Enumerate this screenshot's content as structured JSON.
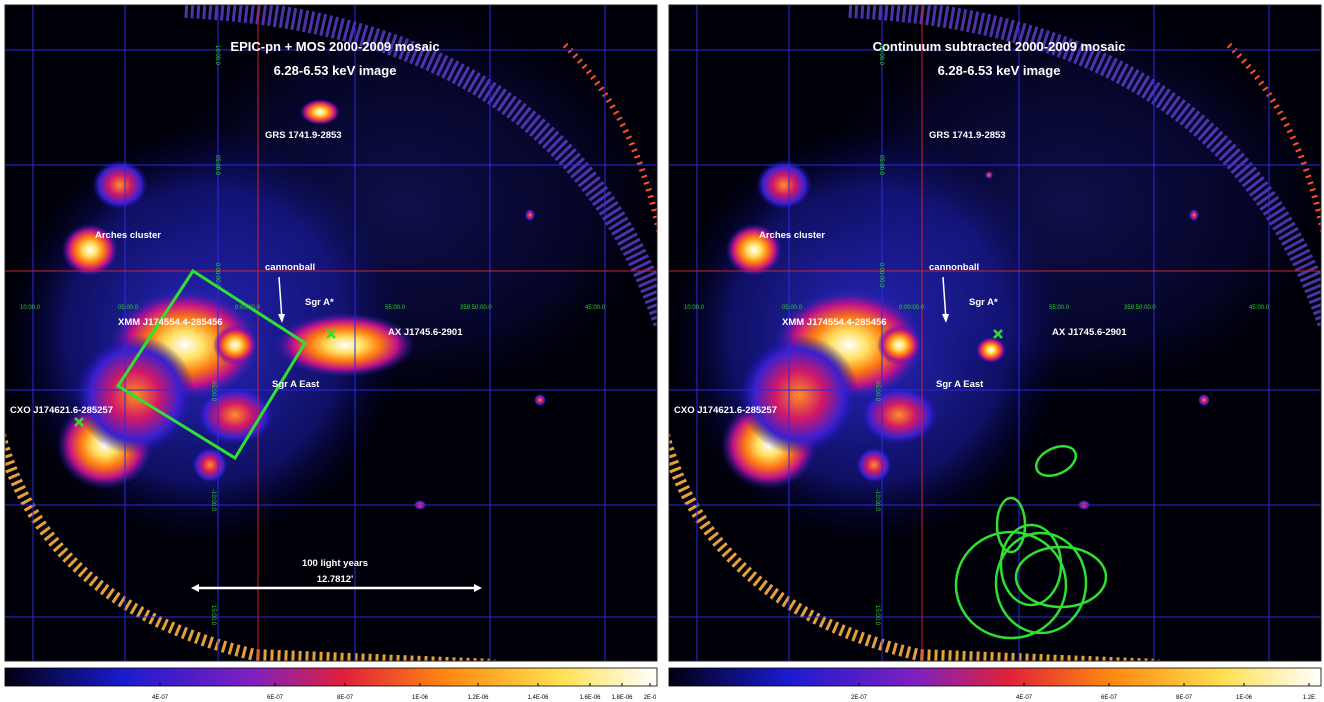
{
  "panels": [
    {
      "title": "EPIC-pn + MOS   2000-2009 mosaic",
      "subtitle": "6.28-6.53 keV image",
      "labels": [
        "GRS 1741.9-2853",
        "Arches cluster",
        "cannonball",
        "Sgr A*",
        "XMM J174554.4-285456",
        "AX J1745.6-2901",
        "Sgr A East",
        "CXO J174621.6-285257"
      ],
      "ra_labels": [
        "10:00.0",
        "05:00.0",
        "0:00:00.0",
        "55:00.0",
        "359:50:00.0",
        "45:00.0"
      ],
      "dec_labels": [
        "10:00.0",
        "05:00.0",
        "0:00:00.0",
        "-05:00.0",
        "-10:00.0",
        "15:00.0"
      ],
      "scale_bar": {
        "label": "100 light years",
        "value": "12.7812'"
      },
      "colorbar_ticks": [
        "4E-07",
        "6E-07",
        "8E-07",
        "1E-06",
        "1.2E-06",
        "1.4E-06",
        "1.6E-06",
        "1.8E-06",
        "2E-0"
      ]
    },
    {
      "title": "Continuum subtracted   2000-2009 mosaic",
      "subtitle": "6.28-6.53 keV image",
      "labels": [
        "GRS 1741.9-2853",
        "Arches cluster",
        "cannonball",
        "Sgr A*",
        "XMM J174554.4-285456",
        "AX J1745.6-2901",
        "Sgr A East",
        "CXO J174621.6-285257"
      ],
      "ra_labels": [
        "10:00.0",
        "05:00.0",
        "0:00:00.0",
        "55:00.0",
        "359:50:00.0",
        "45:00.0"
      ],
      "dec_labels": [
        "10:00.0",
        "05:00.0",
        "0:00:00.0",
        "-05:00.0",
        "-10:00.0",
        "15:00.0"
      ],
      "colorbar_ticks": [
        "2E-07",
        "4E-07",
        "6E-07",
        "8E-07",
        "1E-06",
        "1.2E"
      ]
    }
  ]
}
